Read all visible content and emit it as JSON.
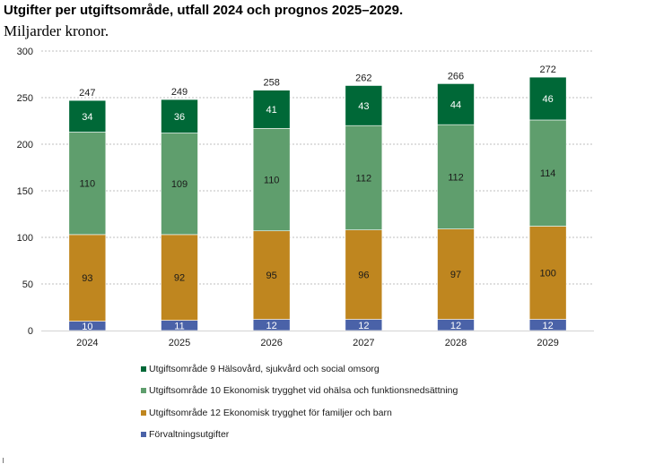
{
  "chart_data": {
    "type": "bar",
    "stacked": true,
    "title": "Utgifter per utgiftsområde, utfall 2024 och prognos 2025–2029.",
    "subtitle": "Miljarder kronor.",
    "xlabel": "",
    "ylabel": "",
    "ylim": [
      0,
      300
    ],
    "yticks": [
      "0",
      "50",
      "100",
      "150",
      "200",
      "250",
      "300"
    ],
    "grid": true,
    "legend_position": "bottom",
    "categories": [
      "2024",
      "2025",
      "2026",
      "2027",
      "2028",
      "2029"
    ],
    "totals": [
      "247",
      "249",
      "258",
      "262",
      "266",
      "272"
    ],
    "series": [
      {
        "name": "Förvaltningsutgifter",
        "color": "#4a62a8",
        "label_color": "#ffffff",
        "values": [
          10,
          11,
          12,
          12,
          12,
          12
        ]
      },
      {
        "name": "Utgiftsområde 12 Ekonomisk trygghet för familjer och barn",
        "color": "#bf861f",
        "label_color": "#1a1a1a",
        "values": [
          93,
          92,
          95,
          96,
          97,
          100
        ]
      },
      {
        "name": "Utgiftsområde 10 Ekonomisk trygghet vid ohälsa och funktionsnedsättning",
        "color": "#5f9e6d",
        "label_color": "#1a1a1a",
        "values": [
          110,
          109,
          110,
          112,
          112,
          114
        ]
      },
      {
        "name": "Utgiftsområde 9 Hälsovård, sjukvård och social omsorg",
        "color": "#006837",
        "label_color": "#ffffff",
        "values": [
          34,
          36,
          41,
          43,
          44,
          46
        ]
      }
    ],
    "legend_order": [
      3,
      2,
      1,
      0
    ]
  },
  "legend": [
    {
      "label": "Utgiftsområde 9 Hälsovård, sjukvård och social omsorg",
      "color": "#006837"
    },
    {
      "label": "Utgiftsområde 10 Ekonomisk trygghet vid ohälsa och funktionsnedsättning",
      "color": "#5f9e6d"
    },
    {
      "label": "Utgiftsområde 12 Ekonomisk trygghet för familjer och barn",
      "color": "#bf861f"
    },
    {
      "label": "Förvaltningsutgifter",
      "color": "#4a62a8"
    }
  ]
}
